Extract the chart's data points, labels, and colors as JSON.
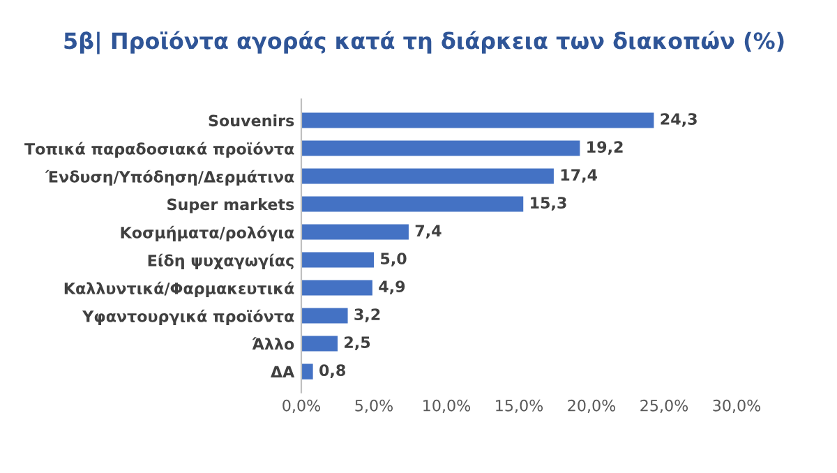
{
  "chart_data": {
    "type": "bar",
    "orientation": "horizontal",
    "title": "5β| Προϊόντα αγοράς κατά τη διάρκεια των διακοπών (%)",
    "categories": [
      "Souvenirs",
      "Τοπικά παραδοσιακά προϊόντα",
      "Ένδυση/Υπόδηση/Δερμάτινα",
      "Super markets",
      "Κοσμήματα/ρολόγια",
      "Είδη ψυχαγωγίας",
      "Καλλυντικά/Φαρμακευτικά",
      "Υφαντουργικά προϊόντα",
      "Άλλο",
      "ΔΑ"
    ],
    "values": [
      24.3,
      19.2,
      17.4,
      15.3,
      7.4,
      5.0,
      4.9,
      3.2,
      2.5,
      0.8
    ],
    "value_labels": [
      "24,3",
      "19,2",
      "17,4",
      "15,3",
      "7,4",
      "5,0",
      "4,9",
      "3,2",
      "2,5",
      "0,8"
    ],
    "color": "#4472c4",
    "xlim": [
      0,
      30
    ],
    "xticks": [
      {
        "value": 0,
        "label": "0,0%"
      },
      {
        "value": 5,
        "label": "5,0%"
      },
      {
        "value": 10,
        "label": "10,0%"
      },
      {
        "value": 15,
        "label": "15,0%"
      },
      {
        "value": 20,
        "label": "20,0%"
      },
      {
        "value": 25,
        "label": "25,0%"
      },
      {
        "value": 30,
        "label": "30,0%"
      }
    ],
    "grid": false,
    "legend": false
  }
}
